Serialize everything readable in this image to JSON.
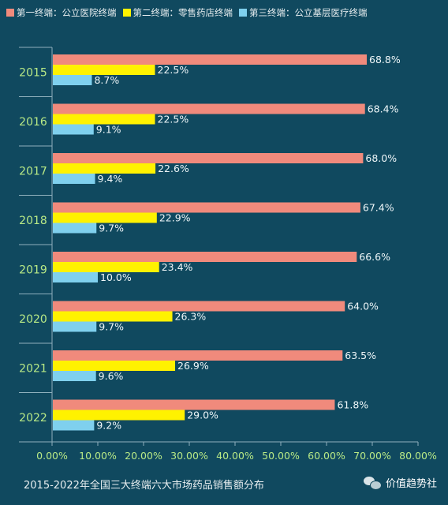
{
  "legend": [
    {
      "label": "第一终端：公立医院终端",
      "color": "#f08a7c"
    },
    {
      "label": "第二终端：零售药店终端",
      "color": "#fff200"
    },
    {
      "label": "第三终端：公立基层医疗终端",
      "color": "#7fd0ee"
    }
  ],
  "caption": "2015-2022年全国三大终端六大市场药品销售额分布",
  "brand": "价值趋势社",
  "chart_data": {
    "type": "bar",
    "orientation": "horizontal",
    "categories": [
      "2015",
      "2016",
      "2017",
      "2018",
      "2019",
      "2020",
      "2021",
      "2022"
    ],
    "series": [
      {
        "name": "第一终端：公立医院终端",
        "values": [
          68.8,
          68.4,
          68.0,
          67.4,
          66.6,
          64.0,
          63.5,
          61.8
        ],
        "labels": [
          "68.8%",
          "68.4%",
          "68.0%",
          "67.4%",
          "66.6%",
          "64.0%",
          "63.5%",
          "61.8%"
        ],
        "color": "#f08a7c"
      },
      {
        "name": "第二终端：零售药店终端",
        "values": [
          22.5,
          22.5,
          22.6,
          22.9,
          23.4,
          26.3,
          26.9,
          29.0
        ],
        "labels": [
          "22.5%",
          "22.5%",
          "22.6%",
          "22.9%",
          "23.4%",
          "26.3%",
          "26.9%",
          "29.0%"
        ],
        "color": "#fff200"
      },
      {
        "name": "第三终端：公立基层医疗终端",
        "values": [
          8.7,
          9.1,
          9.4,
          9.7,
          10.0,
          9.7,
          9.6,
          9.2
        ],
        "labels": [
          "8.7%",
          "9.1%",
          "9.4%",
          "9.7%",
          "10.0%",
          "9.7%",
          "9.6%",
          "9.2%"
        ],
        "color": "#7fd0ee"
      }
    ],
    "xlim": [
      0,
      80
    ],
    "xticks": [
      "0.00%",
      "10.00%",
      "20.00%",
      "30.00%",
      "40.00%",
      "50.00%",
      "60.00%",
      "70.00%",
      "80.00%"
    ],
    "grid": false,
    "legend_position": "top"
  }
}
